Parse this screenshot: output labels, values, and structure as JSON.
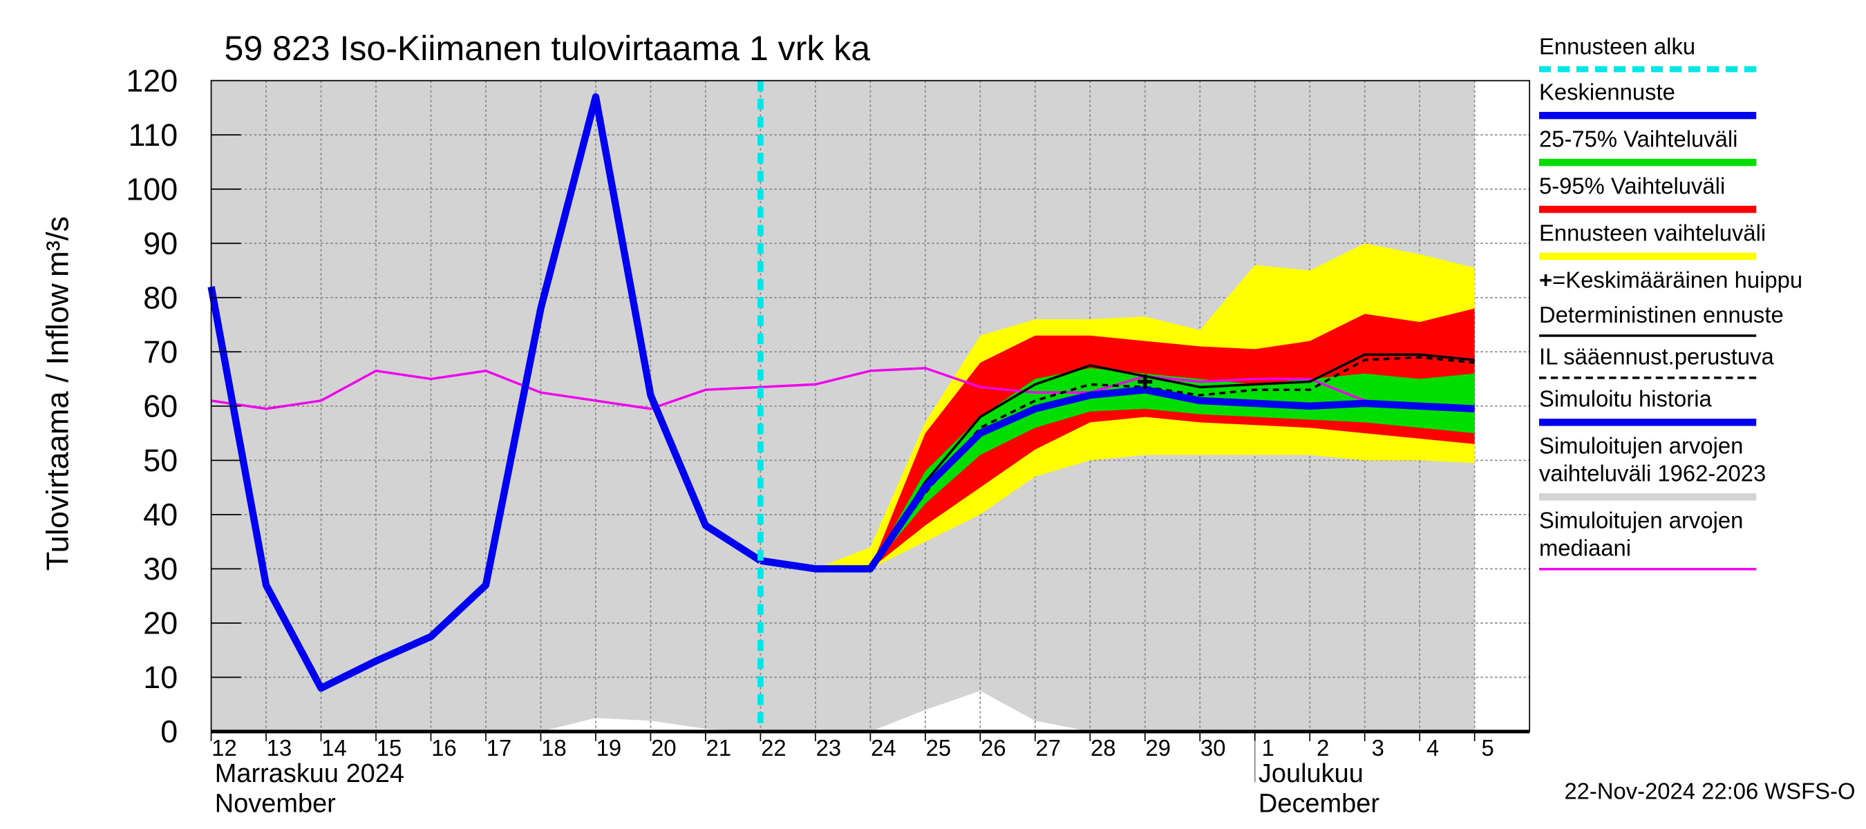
{
  "chart_data": {
    "type": "line",
    "title": "59 823 Iso-Kiimanen tulovirtaama 1 vrk ka",
    "ylabel": "Tulovirtaama / Inflow",
    "yunit": "m³/s",
    "categories": [
      "12",
      "13",
      "14",
      "15",
      "16",
      "17",
      "18",
      "19",
      "20",
      "21",
      "22",
      "23",
      "24",
      "25",
      "26",
      "27",
      "28",
      "29",
      "30",
      "1",
      "2",
      "3",
      "4",
      "5"
    ],
    "month_labels": [
      {
        "index": 0,
        "lines": [
          "Marraskuu 2024",
          "November"
        ]
      },
      {
        "index": 19,
        "lines": [
          "Joulukuu",
          "December"
        ]
      }
    ],
    "ylim": [
      0,
      120
    ],
    "yticks": [
      0,
      10,
      20,
      30,
      40,
      50,
      60,
      70,
      80,
      90,
      100,
      110,
      120
    ],
    "grid": true,
    "forecast_start": {
      "name": "Ennusteen alku",
      "index": 10,
      "color": "#00e5e5"
    },
    "peak": {
      "name": "=Keskimääräinen huippu",
      "index": 17,
      "value": 64.5,
      "color": "#000000"
    },
    "series": [
      {
        "name": "Keskiennuste",
        "color": "#0000ee",
        "style": "thick",
        "values": [
          null,
          null,
          null,
          null,
          null,
          null,
          null,
          null,
          null,
          null,
          31.5,
          30,
          30,
          45,
          55,
          59.5,
          62,
          63,
          61,
          60.5,
          60,
          60.5,
          60,
          59.5
        ]
      },
      {
        "name": "25-75% Vaihteluväli",
        "color": "#00dd00",
        "style": "band",
        "upper": [
          null,
          null,
          null,
          null,
          null,
          null,
          null,
          null,
          null,
          null,
          31.5,
          30,
          30,
          48,
          58,
          65,
          67,
          66,
          65,
          64,
          65,
          66,
          65,
          66
        ],
        "lower": [
          null,
          null,
          null,
          null,
          null,
          null,
          null,
          null,
          null,
          null,
          31.5,
          30,
          30,
          42,
          51,
          56,
          59,
          59.5,
          58.5,
          58,
          57.5,
          57,
          56,
          55
        ]
      },
      {
        "name": "5-95% Vaihteluväli",
        "color": "#ff0000",
        "style": "band",
        "upper": [
          null,
          null,
          null,
          null,
          null,
          null,
          null,
          null,
          null,
          null,
          31.5,
          30,
          30,
          55,
          68,
          73,
          73,
          72,
          71,
          70.5,
          72,
          77,
          75.5,
          78
        ],
        "lower": [
          null,
          null,
          null,
          null,
          null,
          null,
          null,
          null,
          null,
          null,
          31.5,
          30,
          30,
          38,
          45,
          52,
          57,
          58,
          57,
          56.5,
          56,
          55,
          54,
          53
        ]
      },
      {
        "name": "Ennusteen vaihteluväli",
        "color": "#ffff00",
        "style": "band",
        "upper": [
          null,
          null,
          null,
          null,
          null,
          null,
          null,
          null,
          null,
          null,
          31.5,
          30,
          34,
          57,
          73,
          76,
          76,
          76.5,
          74,
          86,
          85,
          90,
          88,
          85.5
        ],
        "lower": [
          null,
          null,
          null,
          null,
          null,
          null,
          null,
          null,
          null,
          null,
          31,
          30,
          30,
          35,
          40,
          47,
          50,
          51,
          51,
          51,
          51,
          50,
          50,
          49.5
        ]
      },
      {
        "name": "Deterministinen ennuste",
        "color": "#000000",
        "style": "solid",
        "values": [
          null,
          null,
          null,
          null,
          null,
          null,
          null,
          null,
          null,
          null,
          31.5,
          30,
          30,
          46,
          58,
          64,
          67.5,
          65.5,
          63.5,
          64,
          64.5,
          69.5,
          69.5,
          68.5
        ]
      },
      {
        "name": "IL sääennust.perustuva",
        "color": "#000000",
        "style": "dashed",
        "values": [
          null,
          null,
          null,
          null,
          null,
          null,
          null,
          null,
          null,
          null,
          31.5,
          30,
          30,
          44,
          56,
          61,
          64,
          63.5,
          62,
          63,
          63,
          68.5,
          69,
          68
        ]
      },
      {
        "name": "Simuloitu historia",
        "color": "#0000ee",
        "style": "thick",
        "values": [
          82,
          27,
          8,
          13,
          17.5,
          27,
          78,
          117,
          62,
          38,
          31.5,
          null,
          null,
          null,
          null,
          null,
          null,
          null,
          null,
          null,
          null,
          null,
          null,
          null
        ]
      },
      {
        "name": "Simuloitujen arvojen vaihteluväli 1962-2023",
        "color": "#d3d3d3",
        "style": "background-band",
        "upper": [
          120,
          120,
          120,
          120,
          120,
          120,
          120,
          120,
          120,
          120,
          120,
          120,
          120,
          120,
          120,
          120,
          120,
          120,
          120,
          120,
          120,
          120,
          120,
          120
        ],
        "lower": [
          0,
          0,
          0,
          0,
          0,
          0,
          0,
          2.5,
          2,
          0.5,
          0,
          0,
          0,
          4,
          7.5,
          2,
          0,
          0,
          0,
          0,
          0,
          0,
          0,
          0
        ]
      },
      {
        "name": "Simuloitujen arvojen mediaani",
        "color": "#ee00ee",
        "style": "solid",
        "values": [
          61,
          59.5,
          61,
          66.5,
          65,
          66.5,
          62.5,
          61,
          59.5,
          63,
          63.5,
          64,
          66.5,
          67,
          63.5,
          62.5,
          62.5,
          65.5,
          64.5,
          65,
          65,
          61,
          60,
          59.5
        ]
      }
    ],
    "timestamp": "22-Nov-2024 22:06 WSFS-O"
  }
}
